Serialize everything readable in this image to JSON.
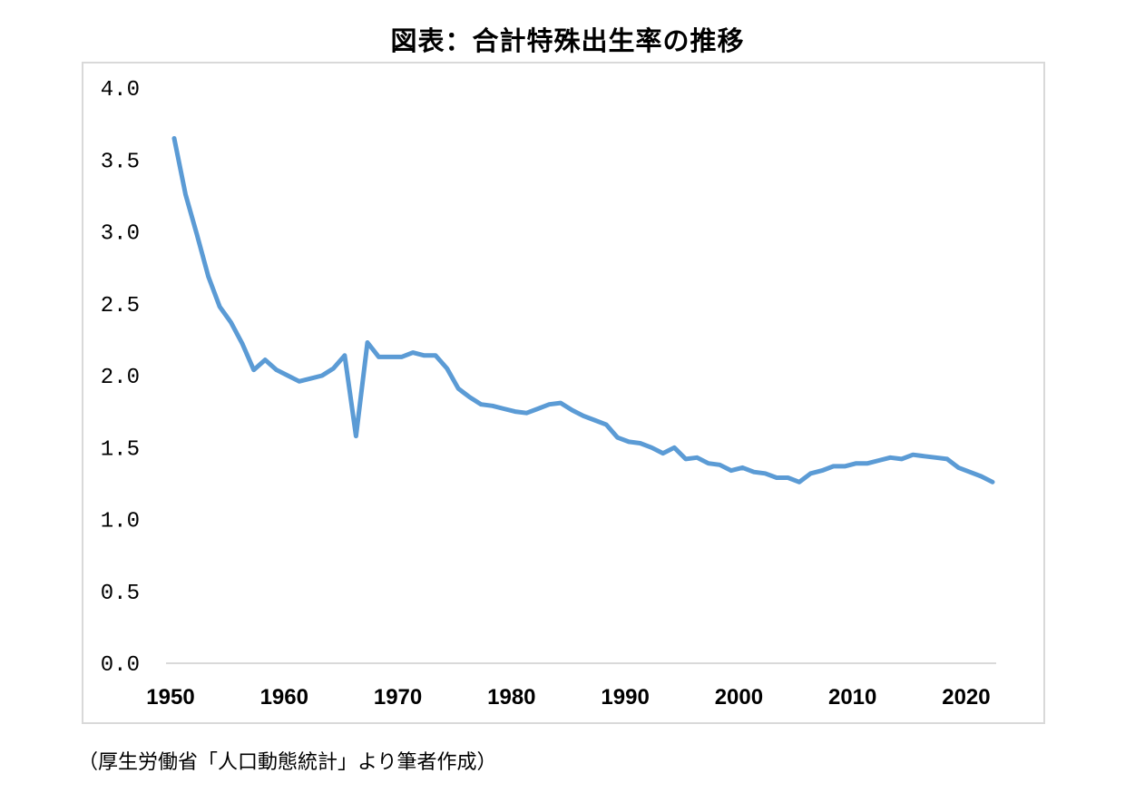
{
  "title": "図表：合計特殊出生率の推移",
  "source": "（厚生労働省「人口動態統計」より筆者作成）",
  "colors": {
    "line": "#5b9bd5",
    "axis": "#d9d9d9",
    "frame": "#d9d9d9"
  },
  "chart_data": {
    "type": "line",
    "title": "図表：合計特殊出生率の推移",
    "xlabel": "",
    "ylabel": "",
    "xlim": [
      1950,
      2022
    ],
    "ylim": [
      0.0,
      4.0
    ],
    "yticks": [
      "0.0",
      "0.5",
      "1.0",
      "1.5",
      "2.0",
      "2.5",
      "3.0",
      "3.5",
      "4.0"
    ],
    "xticks": [
      "1950",
      "1960",
      "1970",
      "1980",
      "1990",
      "2000",
      "2010",
      "2020"
    ],
    "grid": false,
    "legend": "none",
    "x": [
      1950,
      1951,
      1952,
      1953,
      1954,
      1955,
      1956,
      1957,
      1958,
      1959,
      1960,
      1961,
      1962,
      1963,
      1964,
      1965,
      1966,
      1967,
      1968,
      1969,
      1970,
      1971,
      1972,
      1973,
      1974,
      1975,
      1976,
      1977,
      1978,
      1979,
      1980,
      1981,
      1982,
      1983,
      1984,
      1985,
      1986,
      1987,
      1988,
      1989,
      1990,
      1991,
      1992,
      1993,
      1994,
      1995,
      1996,
      1997,
      1998,
      1999,
      2000,
      2001,
      2002,
      2003,
      2004,
      2005,
      2006,
      2007,
      2008,
      2009,
      2010,
      2011,
      2012,
      2013,
      2014,
      2015,
      2016,
      2017,
      2018,
      2019,
      2020,
      2021,
      2022
    ],
    "values": [
      3.65,
      3.26,
      2.98,
      2.69,
      2.48,
      2.37,
      2.22,
      2.04,
      2.11,
      2.04,
      2.0,
      1.96,
      1.98,
      2.0,
      2.05,
      2.14,
      1.58,
      2.23,
      2.13,
      2.13,
      2.13,
      2.16,
      2.14,
      2.14,
      2.05,
      1.91,
      1.85,
      1.8,
      1.79,
      1.77,
      1.75,
      1.74,
      1.77,
      1.8,
      1.81,
      1.76,
      1.72,
      1.69,
      1.66,
      1.57,
      1.54,
      1.53,
      1.5,
      1.46,
      1.5,
      1.42,
      1.43,
      1.39,
      1.38,
      1.34,
      1.36,
      1.33,
      1.32,
      1.29,
      1.29,
      1.26,
      1.32,
      1.34,
      1.37,
      1.37,
      1.39,
      1.39,
      1.41,
      1.43,
      1.42,
      1.45,
      1.44,
      1.43,
      1.42,
      1.36,
      1.33,
      1.3,
      1.26
    ]
  }
}
